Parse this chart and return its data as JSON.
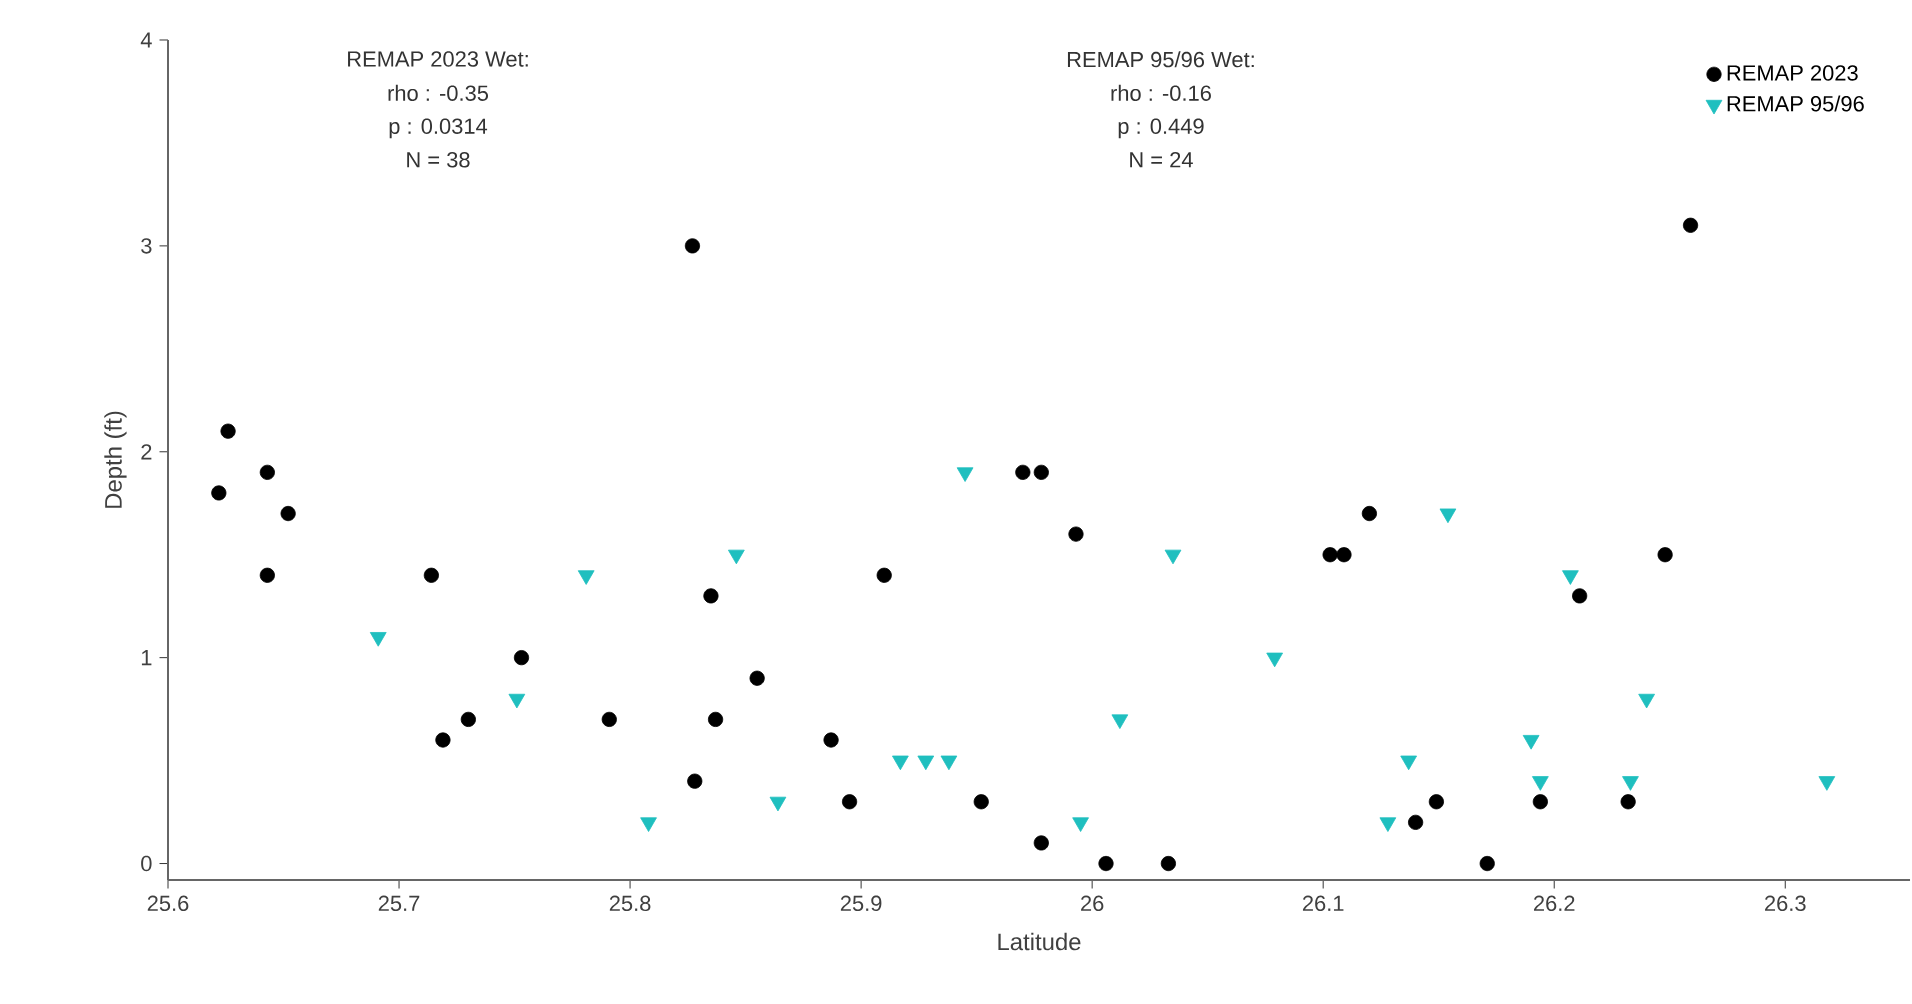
{
  "chart_data": {
    "type": "scatter",
    "xlabel": "Latitude",
    "ylabel": "Depth (ft)",
    "xlim": [
      25.6,
      26.354
    ],
    "ylim": [
      -0.08,
      4
    ],
    "xticks": [
      25.6,
      25.7,
      25.8,
      25.9,
      26,
      26.1,
      26.2,
      26.3
    ],
    "yticks": [
      0,
      1,
      2,
      3,
      4
    ],
    "legend": "top right",
    "grid": false,
    "annotations": [
      "REMAP 2023 Wet:",
      "rho : -0.35",
      "p : 0.0314",
      "N = 38",
      "REMAP 95/96 Wet:",
      "rho : -0.16",
      "p : 0.449",
      "N = 24"
    ],
    "series": [
      {
        "name": "REMAP 2023",
        "color": "#000000",
        "marker": "circle",
        "x": [
          25.622,
          25.626,
          25.643,
          25.643,
          25.652,
          25.714,
          25.719,
          25.73,
          25.753,
          25.791,
          25.827,
          25.828,
          25.835,
          25.837,
          25.855,
          25.887,
          25.895,
          25.91,
          25.952,
          25.97,
          25.978,
          25.978,
          25.993,
          26.006,
          26.033,
          26.103,
          26.109,
          26.12,
          26.14,
          26.149,
          26.171,
          26.194,
          26.211,
          26.232,
          26.248,
          26.259
        ],
        "values": [
          1.8,
          2.1,
          1.9,
          1.4,
          1.7,
          1.4,
          0.6,
          0.7,
          1.0,
          0.7,
          3.0,
          0.4,
          1.3,
          0.7,
          0.9,
          0.6,
          0.3,
          1.4,
          0.3,
          1.9,
          1.9,
          0.1,
          1.6,
          0.0,
          0.0,
          1.5,
          1.5,
          1.7,
          0.2,
          0.3,
          0.0,
          0.3,
          1.3,
          0.3,
          1.5,
          3.1
        ]
      },
      {
        "name": "REMAP 95/96",
        "color": "#1fbfbf",
        "marker": "triangle",
        "x": [
          25.691,
          25.751,
          25.781,
          25.808,
          25.846,
          25.864,
          25.917,
          25.928,
          25.938,
          25.945,
          25.995,
          26.012,
          26.035,
          26.079,
          26.128,
          26.137,
          26.154,
          26.19,
          26.194,
          26.207,
          26.233,
          26.24,
          26.318
        ],
        "values": [
          1.1,
          0.8,
          1.4,
          0.2,
          1.5,
          0.3,
          0.5,
          0.5,
          0.5,
          1.9,
          0.2,
          0.7,
          1.5,
          1.0,
          0.2,
          0.5,
          1.7,
          0.6,
          0.4,
          1.4,
          0.4,
          0.8,
          0.4
        ]
      }
    ]
  }
}
